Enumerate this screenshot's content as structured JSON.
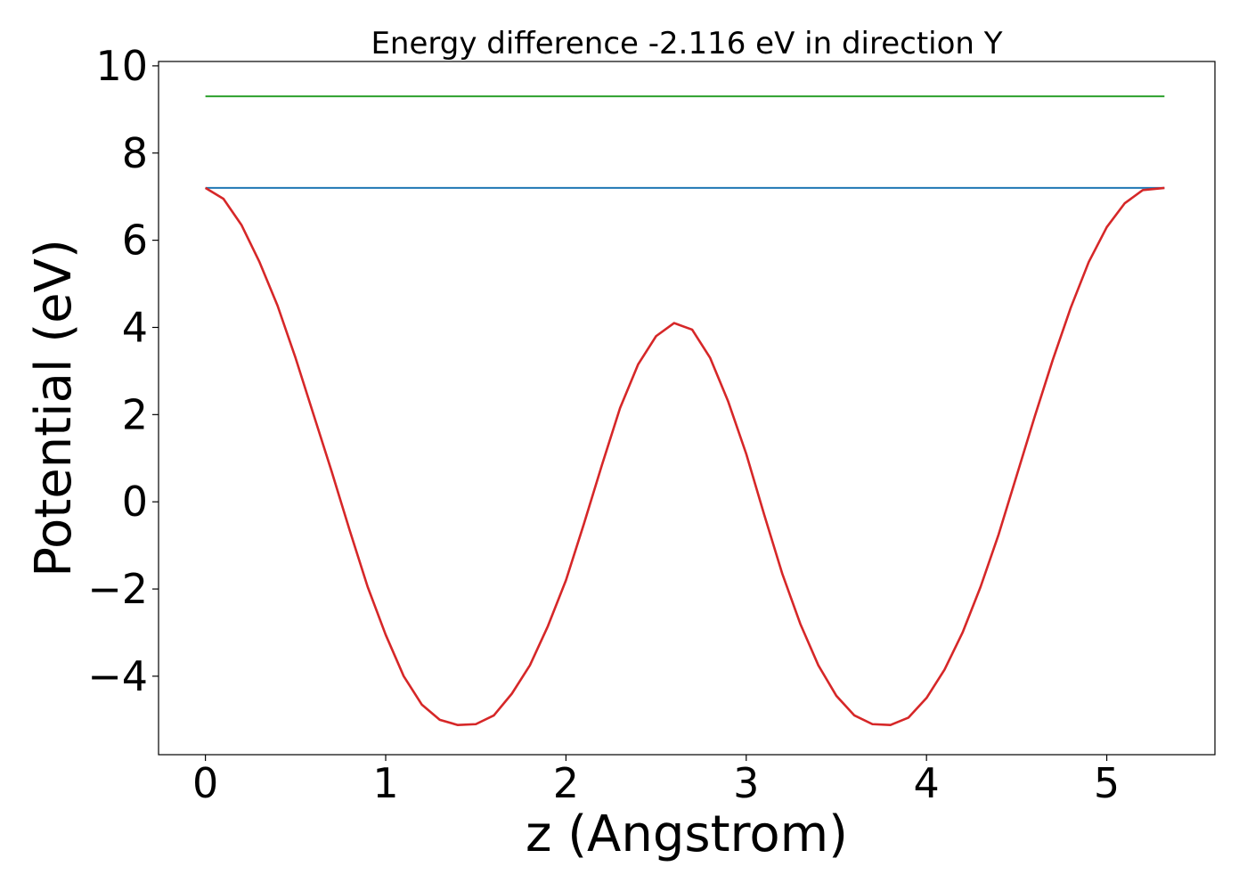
{
  "chart_data": {
    "type": "line",
    "title": "Energy difference -2.116 eV in direction Y",
    "xlabel": "z (Angstrom)",
    "ylabel": "Potential (eV)",
    "xlim": [
      -0.26,
      5.6
    ],
    "ylim": [
      -5.8,
      10.1
    ],
    "xticks": [
      {
        "value": 0,
        "label": "0"
      },
      {
        "value": 1,
        "label": "1"
      },
      {
        "value": 2,
        "label": "2"
      },
      {
        "value": 3,
        "label": "3"
      },
      {
        "value": 4,
        "label": "4"
      },
      {
        "value": 5,
        "label": "5"
      }
    ],
    "yticks": [
      {
        "value": -4,
        "label": "−4"
      },
      {
        "value": -2,
        "label": "−2"
      },
      {
        "value": 0,
        "label": "0"
      },
      {
        "value": 2,
        "label": "2"
      },
      {
        "value": 4,
        "label": "4"
      },
      {
        "value": 6,
        "label": "6"
      },
      {
        "value": 8,
        "label": "8"
      },
      {
        "value": 10,
        "label": "10"
      }
    ],
    "grid": false,
    "legend": "none",
    "series": [
      {
        "color": "#2ca02c",
        "x": [
          0,
          5.32
        ],
        "y": [
          9.3,
          9.3
        ]
      },
      {
        "color": "#1f77b4",
        "x": [
          0,
          5.32
        ],
        "y": [
          7.2,
          7.2
        ]
      },
      {
        "color": "#d62728",
        "x": [
          0,
          0.1,
          0.2,
          0.3,
          0.4,
          0.5,
          0.6,
          0.7,
          0.8,
          0.9,
          1.0,
          1.1,
          1.2,
          1.3,
          1.4,
          1.5,
          1.6,
          1.7,
          1.8,
          1.9,
          2.0,
          2.1,
          2.2,
          2.3,
          2.4,
          2.5,
          2.6,
          2.7,
          2.8,
          2.9,
          3.0,
          3.1,
          3.2,
          3.3,
          3.4,
          3.5,
          3.6,
          3.7,
          3.8,
          3.9,
          4.0,
          4.1,
          4.2,
          4.3,
          4.4,
          4.5,
          4.6,
          4.7,
          4.8,
          4.9,
          5.0,
          5.1,
          5.2,
          5.32
        ],
        "y": [
          7.2,
          6.95,
          6.35,
          5.5,
          4.5,
          3.3,
          2.0,
          0.7,
          -0.65,
          -1.95,
          -3.05,
          -4.0,
          -4.65,
          -5.0,
          -5.12,
          -5.1,
          -4.9,
          -4.4,
          -3.75,
          -2.85,
          -1.8,
          -0.5,
          0.85,
          2.15,
          3.15,
          3.8,
          4.1,
          3.95,
          3.3,
          2.3,
          1.1,
          -0.3,
          -1.65,
          -2.8,
          -3.75,
          -4.45,
          -4.9,
          -5.1,
          -5.12,
          -4.95,
          -4.5,
          -3.85,
          -3.0,
          -1.95,
          -0.75,
          0.6,
          1.95,
          3.25,
          4.45,
          5.5,
          6.3,
          6.85,
          7.15,
          7.2
        ]
      }
    ]
  }
}
